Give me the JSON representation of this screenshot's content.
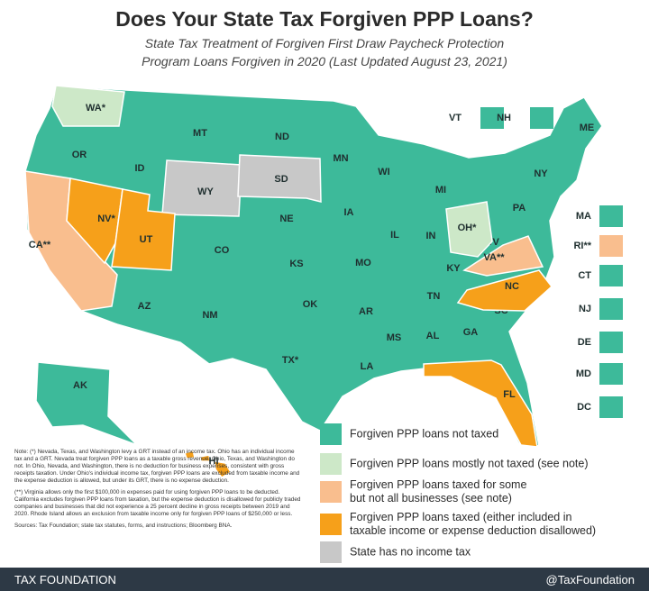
{
  "header": {
    "title": "Does Your State Tax Forgiven PPP Loans?",
    "subtitle": [
      "State Tax Treatment of Forgiven First Draw Paycheck Protection",
      "Program Loans Forgiven in 2020 (Last Updated August 23, 2021)"
    ]
  },
  "legend": {
    "items": [
      {
        "label": [
          "Forgiven PPP loans not taxed"
        ],
        "color": "#3dba9a"
      },
      {
        "label": [
          "Forgiven PPP loans mostly not taxed (see note)"
        ],
        "color": "#cde8c8"
      },
      {
        "label": [
          "Forgiven PPP loans taxed for some",
          "but not all businesses (see note)"
        ],
        "color": "#f9be8e"
      },
      {
        "label": [
          "Forgiven PPP loans taxed (either included in",
          "taxable income or expense deduction disallowed)"
        ],
        "color": "#f6a01a"
      },
      {
        "label": [
          "State has no income tax"
        ],
        "color": "#c8c8c8"
      }
    ]
  },
  "states": [
    {
      "label": "WA*",
      "category": 1
    },
    {
      "label": "OR",
      "category": 0
    },
    {
      "label": "CA**",
      "category": 2
    },
    {
      "label": "NV*",
      "category": 3
    },
    {
      "label": "ID",
      "category": 0
    },
    {
      "label": "MT",
      "category": 0
    },
    {
      "label": "WY",
      "category": 4
    },
    {
      "label": "UT",
      "category": 3
    },
    {
      "label": "AZ",
      "category": 0
    },
    {
      "label": "CO",
      "category": 0
    },
    {
      "label": "NM",
      "category": 0
    },
    {
      "label": "ND",
      "category": 0
    },
    {
      "label": "SD",
      "category": 4
    },
    {
      "label": "NE",
      "category": 0
    },
    {
      "label": "KS",
      "category": 0
    },
    {
      "label": "OK",
      "category": 0
    },
    {
      "label": "TX*",
      "category": 0
    },
    {
      "label": "MN",
      "category": 0
    },
    {
      "label": "IA",
      "category": 0
    },
    {
      "label": "MO",
      "category": 0
    },
    {
      "label": "AR",
      "category": 0
    },
    {
      "label": "LA",
      "category": 0
    },
    {
      "label": "WI",
      "category": 0
    },
    {
      "label": "IL",
      "category": 0
    },
    {
      "label": "MS",
      "category": 0
    },
    {
      "label": "MI",
      "category": 0
    },
    {
      "label": "IN",
      "category": 0
    },
    {
      "label": "KY",
      "category": 0
    },
    {
      "label": "TN",
      "category": 0
    },
    {
      "label": "AL",
      "category": 0
    },
    {
      "label": "GA",
      "category": 0
    },
    {
      "label": "FL",
      "category": 3
    },
    {
      "label": "SC",
      "category": 0
    },
    {
      "label": "NC",
      "category": 3
    },
    {
      "label": "VA**",
      "category": 2
    },
    {
      "label": "WV",
      "category": 0
    },
    {
      "label": "OH*",
      "category": 1
    },
    {
      "label": "PA",
      "category": 0
    },
    {
      "label": "NY",
      "category": 0
    },
    {
      "label": "ME",
      "category": 0
    },
    {
      "label": "AK",
      "category": 0
    },
    {
      "label": "HI",
      "category": 3
    }
  ],
  "small_states": [
    {
      "label": "VT",
      "category": 0
    },
    {
      "label": "NH",
      "category": 0
    },
    {
      "label": "MA",
      "category": 0
    },
    {
      "label": "RI**",
      "category": 2
    },
    {
      "label": "CT",
      "category": 0
    },
    {
      "label": "NJ",
      "category": 0
    },
    {
      "label": "DE",
      "category": 0
    },
    {
      "label": "MD",
      "category": 0
    },
    {
      "label": "DC",
      "category": 0
    }
  ],
  "notes": [
    "Note: (*) Nevada, Texas, and Washington levy a GRT instead of an income tax. Ohio has an individual income tax and a GRT. Nevada treat forgiven PPP loans as a taxable gross revenue; Ohio, Texas, and Washington do not. In Ohio, Nevada, and Washington, there is no deduction for business expenses, consistent with gross receipts taxation. Under Ohio's individual income tax, forgiven PPP loans are excluded from taxable income and the expense deduction is allowed, but under its GRT, there is no expense deduction.",
    "(**) Virginia allows only the first $100,000 in expenses paid for using forgiven PPP loans to be deducted. California excludes forgiven PPP loans from taxation, but the expense deduction is disallowed for publicly traded companies and businesses that did not experience a 25 percent decline in gross receipts between 2019 and 2020. Rhode Island allows an exclusion from taxable income only for forgiven PPP loans of $250,000 or less.",
    "Sources: Tax Foundation; state tax statutes, forms, and instructions; Bloomberg BNA."
  ],
  "footer": {
    "left": "TAX FOUNDATION",
    "right": "@TaxFoundation"
  }
}
